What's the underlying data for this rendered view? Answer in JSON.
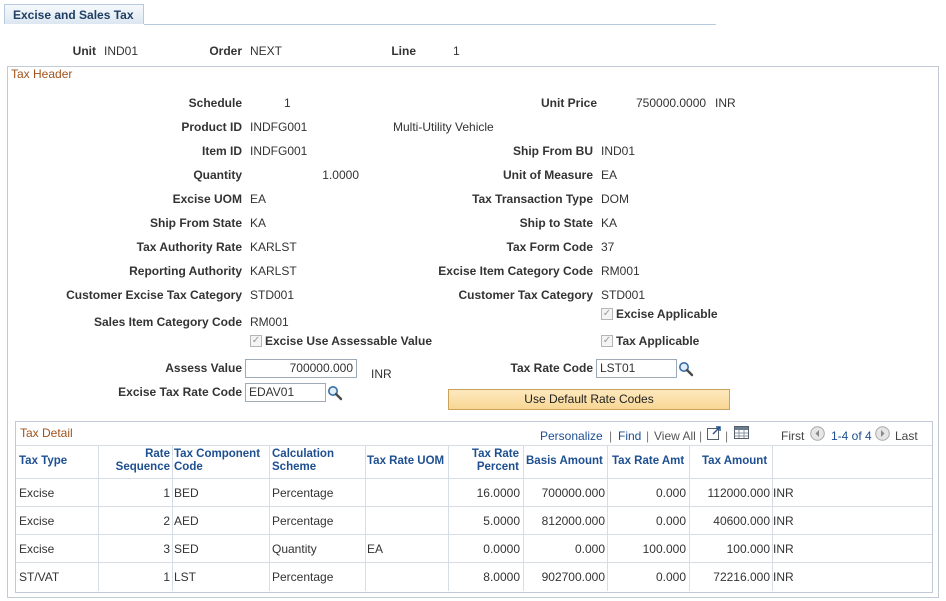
{
  "tab": {
    "label": "Excise and Sales Tax"
  },
  "key": {
    "unit_label": "Unit",
    "unit_value": "IND01",
    "order_label": "Order",
    "order_value": "NEXT",
    "line_label": "Line",
    "line_value": "1"
  },
  "header": {
    "title": "Tax Header",
    "schedule_label": "Schedule",
    "schedule_value": "1",
    "unit_price_label": "Unit Price",
    "unit_price_value": "750000.0000",
    "unit_price_currency": "INR",
    "product_id_label": "Product ID",
    "product_id_value": "INDFG001",
    "product_desc": "Multi-Utility Vehicle",
    "item_id_label": "Item ID",
    "item_id_value": "INDFG001",
    "ship_from_bu_label": "Ship From BU",
    "ship_from_bu_value": "IND01",
    "quantity_label": "Quantity",
    "quantity_value": "1.0000",
    "uom_label": "Unit of Measure",
    "uom_value": "EA",
    "excise_uom_label": "Excise UOM",
    "excise_uom_value": "EA",
    "tax_txn_type_label": "Tax Transaction Type",
    "tax_txn_type_value": "DOM",
    "ship_from_state_label": "Ship From State",
    "ship_from_state_value": "KA",
    "ship_to_state_label": "Ship to State",
    "ship_to_state_value": "KA",
    "tax_authority_rate_label": "Tax Authority Rate",
    "tax_authority_rate_value": "KARLST",
    "tax_form_code_label": "Tax Form Code",
    "tax_form_code_value": "37",
    "reporting_authority_label": "Reporting Authority",
    "reporting_authority_value": "KARLST",
    "excise_item_cat_label": "Excise Item Category Code",
    "excise_item_cat_value": "RM001",
    "cust_excise_cat_label": "Customer Excise Tax Category",
    "cust_excise_cat_value": "STD001",
    "cust_tax_cat_label": "Customer Tax Category",
    "cust_tax_cat_value": "STD001",
    "sales_item_cat_label": "Sales Item Category Code",
    "sales_item_cat_value": "RM001",
    "excise_applicable_label": "Excise Applicable",
    "excise_use_assessable_label": "Excise Use Assessable Value",
    "tax_applicable_label": "Tax Applicable",
    "assess_value_label": "Assess Value",
    "assess_value_value": "700000.000",
    "assess_value_currency": "INR",
    "tax_rate_code_label": "Tax Rate Code",
    "tax_rate_code_value": "LST01",
    "excise_tax_rate_code_label": "Excise Tax Rate Code",
    "excise_tax_rate_code_value": "EDAV01",
    "default_button_label": "Use Default Rate Codes"
  },
  "detail": {
    "title": "Tax Detail",
    "personalize": "Personalize",
    "find": "Find",
    "view_all": "View All",
    "first": "First",
    "range": "1-4 of 4",
    "last": "Last",
    "columns": {
      "tax_type": "Tax Type",
      "rate_seq_1": "Rate",
      "rate_seq_2": "Sequence",
      "tax_comp_1": "Tax Component",
      "tax_comp_2": "Code",
      "calc_1": "Calculation",
      "calc_2": "Scheme",
      "tax_rate_uom": "Tax Rate UOM",
      "rate_pct_1": "Tax Rate",
      "rate_pct_2": "Percent",
      "basis_amount": "Basis Amount",
      "tax_rate_amt": "Tax Rate Amt",
      "tax_amount": "Tax Amount"
    },
    "rows": [
      {
        "tax_type": "Excise",
        "seq": "1",
        "code": "BED",
        "scheme": "Percentage",
        "uom": "",
        "pct": "16.0000",
        "basis": "700000.000",
        "rate_amt": "0.000",
        "amount": "112000.000",
        "currency": "INR"
      },
      {
        "tax_type": "Excise",
        "seq": "2",
        "code": "AED",
        "scheme": "Percentage",
        "uom": "",
        "pct": "5.0000",
        "basis": "812000.000",
        "rate_amt": "0.000",
        "amount": "40600.000",
        "currency": "INR"
      },
      {
        "tax_type": "Excise",
        "seq": "3",
        "code": "SED",
        "scheme": "Quantity",
        "uom": "EA",
        "pct": "0.0000",
        "basis": "0.000",
        "rate_amt": "100.000",
        "amount": "100.000",
        "currency": "INR"
      },
      {
        "tax_type": "ST/VAT",
        "seq": "1",
        "code": "LST",
        "scheme": "Percentage",
        "uom": "",
        "pct": "8.0000",
        "basis": "902700.000",
        "rate_amt": "0.000",
        "amount": "72216.000",
        "currency": "INR"
      }
    ]
  },
  "icons": {
    "lookup": "magnifier-icon",
    "zoom": "zoom-grid-icon",
    "download": "spreadsheet-icon",
    "prev": "arrow-left-icon",
    "next": "arrow-right-icon"
  },
  "colors": {
    "group_title": "#a0521c",
    "link": "#1d4f91",
    "button": "#f8d795"
  }
}
